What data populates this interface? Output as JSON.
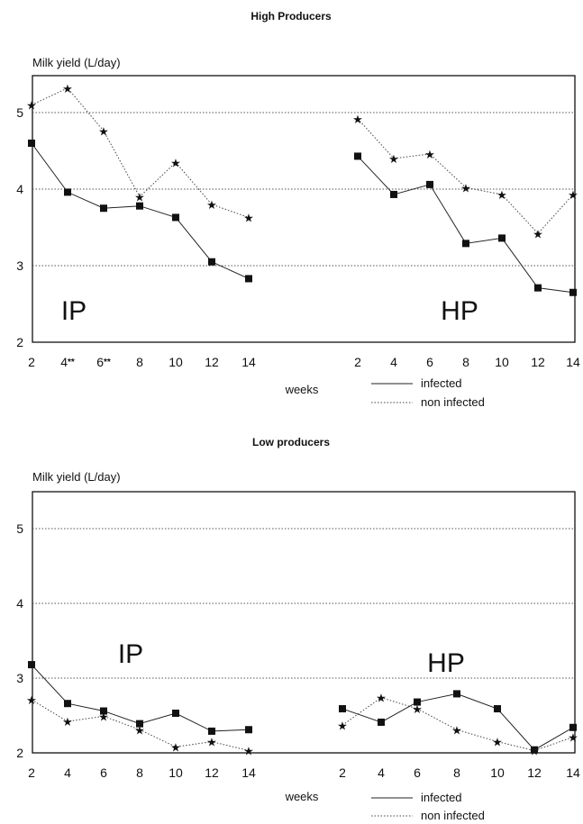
{
  "chart_data": [
    {
      "type": "line",
      "title": "High Producers",
      "ylabel": "Milk yield (L/day)",
      "xlabel": "weeks",
      "ylim": [
        2,
        5.5
      ],
      "yticks": [
        2,
        3,
        4,
        5
      ],
      "grid": "dotted horizontal at 3, 4, 5",
      "legend": {
        "position": "bottom-right",
        "entries": [
          "infected",
          "non infected"
        ]
      },
      "groups": [
        {
          "label": "IP",
          "x": [
            "2",
            "4**",
            "6**",
            "8",
            "10",
            "12",
            "14"
          ],
          "series": [
            {
              "name": "infected",
              "values": [
                4.6,
                3.96,
                3.75,
                3.78,
                3.63,
                3.05,
                2.83
              ]
            },
            {
              "name": "non infected",
              "values": [
                5.1,
                5.32,
                4.76,
                3.9,
                4.35,
                3.8,
                3.63
              ]
            }
          ]
        },
        {
          "label": "HP",
          "x": [
            "2",
            "4",
            "6",
            "8",
            "10",
            "12",
            "14"
          ],
          "series": [
            {
              "name": "infected",
              "values": [
                4.43,
                3.93,
                4.06,
                3.29,
                3.36,
                2.71,
                2.65
              ]
            },
            {
              "name": "non infected",
              "values": [
                4.92,
                4.4,
                4.46,
                4.02,
                3.93,
                3.42,
                3.93
              ]
            }
          ]
        }
      ]
    },
    {
      "type": "line",
      "title": "Low producers",
      "ylabel": "Milk yield (L/day)",
      "xlabel": "weeks",
      "ylim": [
        2,
        5.5
      ],
      "yticks": [
        2,
        3,
        4,
        5
      ],
      "grid": "dotted horizontal at 3, 4, 5",
      "legend": {
        "position": "bottom-right",
        "entries": [
          "infected",
          "non infected"
        ]
      },
      "groups": [
        {
          "label": "IP",
          "x": [
            "2",
            "4",
            "6",
            "8",
            "10",
            "12",
            "14"
          ],
          "series": [
            {
              "name": "infected",
              "values": [
                3.18,
                2.66,
                2.56,
                2.39,
                2.53,
                2.29,
                2.31
              ]
            },
            {
              "name": "non infected",
              "values": [
                2.71,
                2.42,
                2.49,
                2.31,
                2.08,
                2.15,
                2.03
              ]
            }
          ]
        },
        {
          "label": "HP",
          "x": [
            "2",
            "4",
            "6",
            "8",
            "10",
            "12",
            "14"
          ],
          "series": [
            {
              "name": "infected",
              "values": [
                2.59,
                2.41,
                2.68,
                2.79,
                2.59,
                2.04,
                2.34
              ]
            },
            {
              "name": "non infected",
              "values": [
                2.37,
                2.74,
                2.59,
                2.31,
                2.15,
                2.03,
                2.21
              ]
            }
          ]
        }
      ]
    }
  ]
}
